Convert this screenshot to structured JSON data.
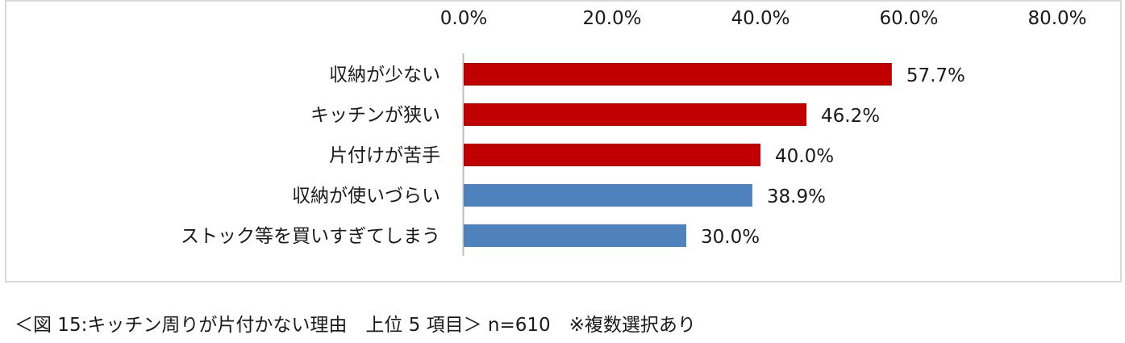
{
  "caption": "＜図 15:キッチン周りが片付かない理由　上位 5 項目＞ n=610　※複数選択あり",
  "colors": {
    "highlight_bar": "#c00000",
    "normal_bar": "#4f81bd",
    "axis_line": "#bfbfbf",
    "frame_border": "#d9d9d9"
  },
  "chart_data": {
    "type": "bar",
    "orientation": "horizontal",
    "title": "",
    "xlabel": "",
    "ylabel": "",
    "x_axis_position": "top",
    "xlim": [
      0,
      80
    ],
    "x_ticks": [
      0,
      20,
      40,
      60,
      80
    ],
    "x_tick_labels": [
      "0.0%",
      "20.0%",
      "40.0%",
      "60.0%",
      "80.0%"
    ],
    "grid": false,
    "legend": "none",
    "categories": [
      "収納が少ない",
      "キッチンが狭い",
      "片付けが苦手",
      "収納が使いづらい",
      "ストック等を買いすぎてしまう"
    ],
    "values": [
      57.7,
      46.2,
      40.0,
      38.9,
      30.0
    ],
    "data_labels": [
      "57.7%",
      "46.2%",
      "40.0%",
      "38.9%",
      "30.0%"
    ],
    "bar_colors": [
      "#c00000",
      "#c00000",
      "#c00000",
      "#4f81bd",
      "#4f81bd"
    ]
  }
}
